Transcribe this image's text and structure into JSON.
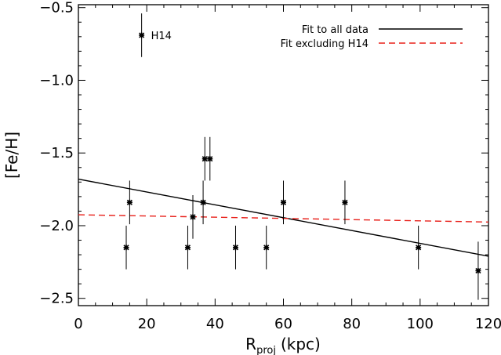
{
  "chart_data": {
    "type": "scatter",
    "xlabel": "R",
    "xlabel_sub": "proj",
    "xlabel_unit": "(kpc)",
    "ylabel": "[Fe/H]",
    "xlim": [
      0,
      120
    ],
    "ylim": [
      -2.55,
      -0.48
    ],
    "xticks": [
      0,
      20,
      40,
      60,
      80,
      100,
      120
    ],
    "xtick_labels": [
      "0",
      "20",
      "40",
      "60",
      "80",
      "100",
      "120"
    ],
    "yticks": [
      -2.5,
      -2.0,
      -1.5,
      -1.0,
      -0.5
    ],
    "ytick_labels": [
      "−2.5",
      "−2.0",
      "−1.5",
      "−1.0",
      "−0.5"
    ],
    "grid": false,
    "legend_position": "top-right",
    "points": [
      {
        "x": 18.5,
        "y": -0.69,
        "yerr": 0.15,
        "label": "H14"
      },
      {
        "x": 14.0,
        "y": -2.15,
        "yerr": 0.15
      },
      {
        "x": 15.0,
        "y": -1.84,
        "yerr": 0.15
      },
      {
        "x": 32.0,
        "y": -2.15,
        "yerr": 0.15
      },
      {
        "x": 33.5,
        "y": -1.94,
        "yerr": 0.15
      },
      {
        "x": 36.5,
        "y": -1.84,
        "yerr": 0.15
      },
      {
        "x": 37.0,
        "y": -1.54,
        "yerr": 0.15
      },
      {
        "x": 38.5,
        "y": -1.54,
        "yerr": 0.15
      },
      {
        "x": 46.0,
        "y": -2.15,
        "yerr": 0.15
      },
      {
        "x": 55.0,
        "y": -2.15,
        "yerr": 0.15
      },
      {
        "x": 60.0,
        "y": -1.84,
        "yerr": 0.15
      },
      {
        "x": 78.0,
        "y": -1.84,
        "yerr": 0.15
      },
      {
        "x": 99.5,
        "y": -2.15,
        "yerr": 0.15
      },
      {
        "x": 117.0,
        "y": -2.31,
        "yerr": 0.2
      }
    ],
    "series": [
      {
        "name": "Fit to all data",
        "style": "solid",
        "color": "#000000",
        "x": [
          0,
          120
        ],
        "y": [
          -1.68,
          -2.21
        ]
      },
      {
        "name": "Fit excluding H14",
        "style": "dashed",
        "color": "#e8201a",
        "x": [
          0,
          120
        ],
        "y": [
          -1.925,
          -1.975
        ]
      }
    ]
  }
}
